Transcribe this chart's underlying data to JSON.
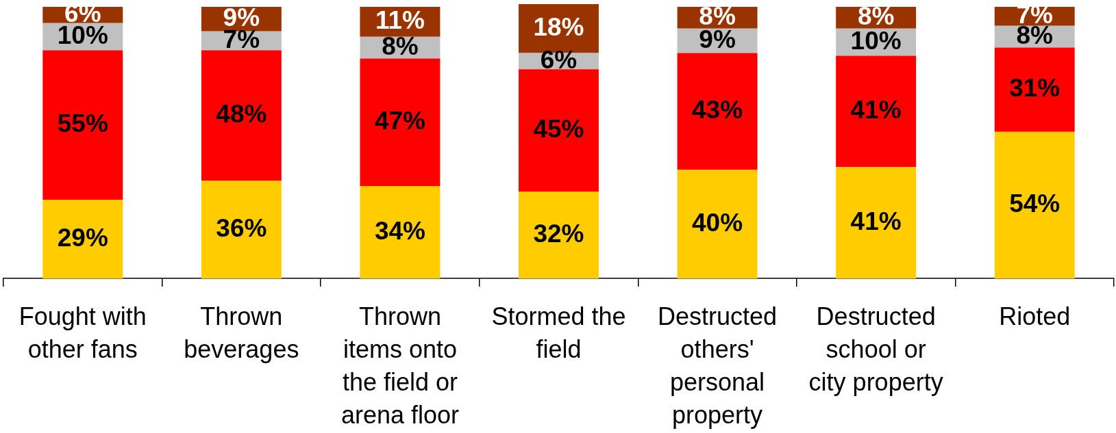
{
  "chart_data": {
    "type": "bar",
    "stacked": true,
    "tick_labels": "x",
    "categories": [
      "Fought with other fans",
      "Thrown beverages",
      "Thrown items onto the field or arena floor",
      "Stormed the field",
      "Destructed others' personal property",
      "Destructed school or city property",
      "Rioted"
    ],
    "series": [
      {
        "color": "#ffcc00",
        "values": [
          29,
          36,
          34,
          32,
          40,
          41,
          54
        ],
        "value_labels": [
          "29%",
          "36%",
          "34%",
          "32%",
          "40%",
          "41%",
          "54%"
        ]
      },
      {
        "color": "#ff0000",
        "values": [
          55,
          48,
          47,
          45,
          43,
          41,
          31
        ],
        "value_labels": [
          "55%",
          "48%",
          "47%",
          "45%",
          "43%",
          "41%",
          "31%"
        ]
      },
      {
        "color": "#c0c0c0",
        "values": [
          10,
          7,
          8,
          6,
          9,
          10,
          8
        ],
        "value_labels": [
          "10%",
          "7%",
          "8%",
          "6%",
          "9%",
          "10%",
          "8%"
        ]
      },
      {
        "color": "#993300",
        "values": [
          6,
          9,
          11,
          18,
          8,
          8,
          7
        ],
        "value_labels": [
          "6%",
          "9%",
          "11%",
          "18%",
          "8%",
          "8%",
          "7%"
        ]
      }
    ]
  }
}
